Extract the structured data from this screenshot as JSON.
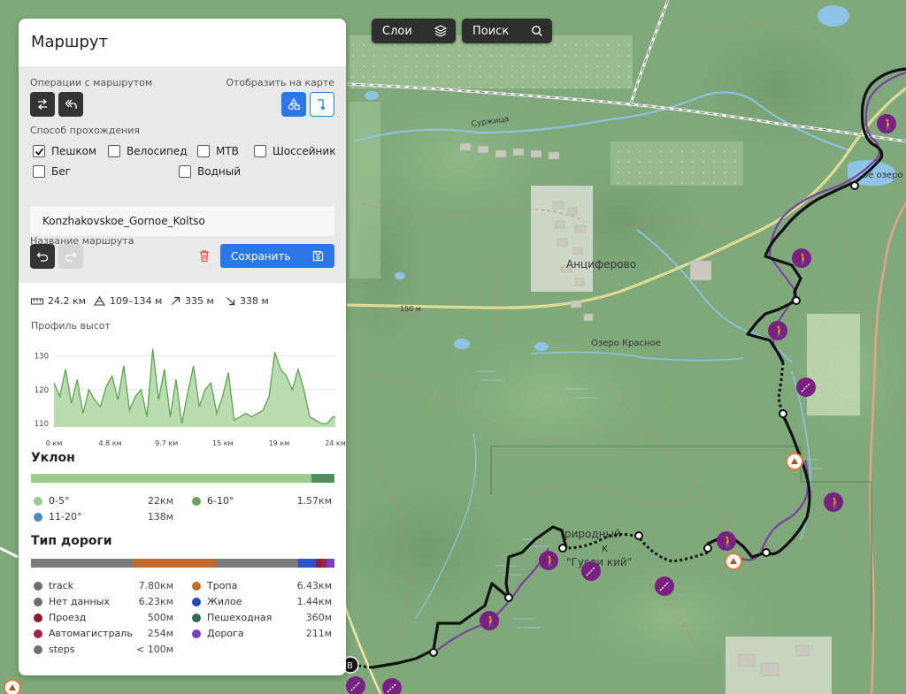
{
  "toolbar": {
    "layers_label": "Слои",
    "search_label": "Поиск"
  },
  "panel": {
    "title": "Маршрут",
    "ops_label": "Операции с маршрутом",
    "display_label": "Отобразить на карте",
    "travel_mode_label": "Способ прохождения",
    "modes": [
      {
        "label": "Пешком",
        "checked": true
      },
      {
        "label": "Велосипед",
        "checked": false
      },
      {
        "label": "МТВ",
        "checked": false
      },
      {
        "label": "Шоссейник",
        "checked": false
      },
      {
        "label": "Бег",
        "checked": false
      },
      {
        "label": "Водный",
        "checked": false
      }
    ],
    "name_label": "Название маршрута",
    "name_value": "Konzhakovskoe_Gornoe_Koltso",
    "save_label": "Сохранить"
  },
  "stats": {
    "distance": "24.2 км",
    "elevation_range": "109–134 м",
    "ascent": "335 м",
    "descent": "338 м"
  },
  "profile": {
    "title": "Профиль высот",
    "y_ticks": [
      "130",
      "120",
      "110"
    ],
    "x_ticks": [
      "0 км",
      "4.8 км",
      "9.7 км",
      "15 км",
      "19 км",
      "24 км"
    ]
  },
  "chart_data": {
    "type": "area",
    "title": "Профиль высот",
    "xlabel": "",
    "ylabel": "",
    "xlim": [
      0,
      24.2
    ],
    "ylim": [
      109,
      134
    ],
    "x": [
      0,
      0.5,
      1,
      1.5,
      2,
      2.5,
      3,
      3.5,
      4,
      4.5,
      5,
      5.5,
      6,
      6.5,
      7,
      7.5,
      8,
      8.5,
      9,
      9.5,
      10,
      10.5,
      11,
      11.5,
      12,
      12.5,
      13,
      13.5,
      14,
      14.5,
      15,
      15.5,
      16,
      16.5,
      17,
      17.5,
      18,
      18.5,
      19,
      19.5,
      20,
      20.5,
      21,
      21.5,
      22,
      22.5,
      23,
      23.5,
      24,
      24.2
    ],
    "y": [
      122,
      118,
      126,
      116,
      123,
      113,
      120,
      117,
      115,
      121,
      124,
      117,
      127,
      114,
      118,
      120,
      112,
      132,
      117,
      126,
      112,
      123,
      110,
      119,
      127,
      115,
      120,
      122,
      113,
      118,
      125,
      111,
      112,
      113,
      112,
      113,
      114,
      118,
      131,
      126,
      124,
      120,
      126,
      120,
      112,
      111,
      110,
      110,
      112,
      112
    ]
  },
  "slope": {
    "title": "Уклон",
    "bar": [
      {
        "color": "#9ccc8c",
        "fraction": 0.925
      },
      {
        "color": "#4e8f5a",
        "fraction": 0.075
      }
    ],
    "items": [
      {
        "label": "0-5°",
        "value": "22км",
        "color": "#9ccc8c"
      },
      {
        "label": "6-10°",
        "value": "1.57км",
        "color": "#6aa35e"
      },
      {
        "label": "11-20°",
        "value": "138м",
        "color": "#4a8ab4"
      }
    ]
  },
  "road": {
    "title": "Тип дороги",
    "bar": [
      {
        "color": "#7a7a7a",
        "fraction": 0.335
      },
      {
        "color": "#c26a2c",
        "fraction": 0.275
      },
      {
        "color": "#7a7a7a",
        "fraction": 0.27
      },
      {
        "color": "#2855c9",
        "fraction": 0.06
      },
      {
        "color": "#8a2038",
        "fraction": 0.02
      },
      {
        "color": "#a0244a",
        "fraction": 0.015
      },
      {
        "color": "#7a3ec4",
        "fraction": 0.025
      }
    ],
    "items": [
      {
        "label": "track",
        "value": "7.80км",
        "color": "#6e6e6e"
      },
      {
        "label": "Тропа",
        "value": "6.43км",
        "color": "#c26a2c"
      },
      {
        "label": "Нет данных",
        "value": "6.23км",
        "color": "#6e6e6e"
      },
      {
        "label": "Жилое",
        "value": "1.44км",
        "color": "#2048b8"
      },
      {
        "label": "Проезд",
        "value": "500м",
        "color": "#8c1a2a"
      },
      {
        "label": "Пешеходная",
        "value": "360м",
        "color": "#2f6a5a"
      },
      {
        "label": "Автомагистраль",
        "value": "254м",
        "color": "#a0244a"
      },
      {
        "label": "Дорога",
        "value": "211м",
        "color": "#7a3ec4"
      },
      {
        "label": "steps",
        "value": "< 100м",
        "color": "#6e6e6e"
      }
    ]
  },
  "map": {
    "place_anciferovo": "Анциферово",
    "lake_krasnoe": "Озеро Красное",
    "river_surzhitsa": "Суржица",
    "lake_label": "ое озеро",
    "road_150": "150 м",
    "reserve_label_1": "риродный",
    "reserve_label_2": "к",
    "reserve_label_3": "\"Гусли кий\"",
    "marker_b": "В"
  }
}
